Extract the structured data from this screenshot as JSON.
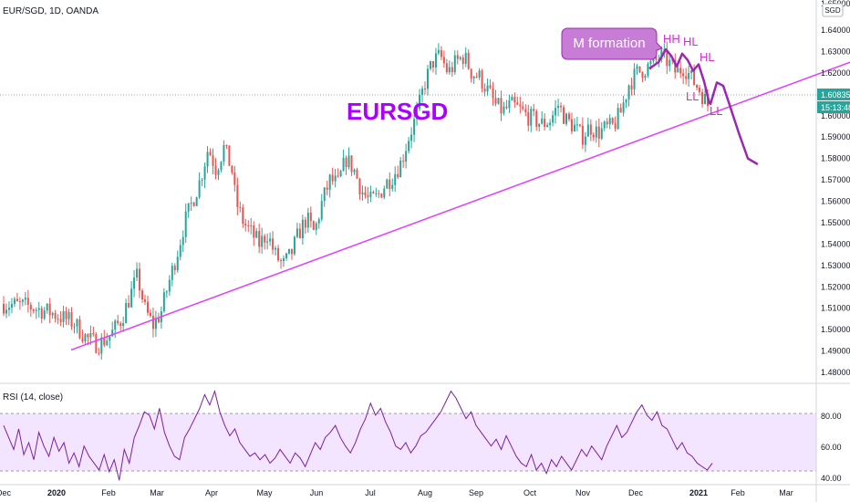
{
  "header": {
    "symbol_line": "EUR/SGD, 1D, OANDA"
  },
  "currency_box": "SGD",
  "chart_data": {
    "type": "candlestick",
    "symbol": "EURSGD",
    "interval": "1D",
    "source": "OANDA",
    "y_ticks": [
      "1.64000",
      "1.63000",
      "1.62000",
      "1.61000",
      "1.60000",
      "1.59000",
      "1.58000",
      "1.57000",
      "1.56000",
      "1.55000",
      "1.54000",
      "1.53000",
      "1.52000",
      "1.51000",
      "1.50000",
      "1.49000",
      "1.48000"
    ],
    "y_top_partial": "1.65000",
    "ylim": [
      1.477,
      1.655
    ],
    "x_labels": [
      "Dec",
      "2020",
      "Feb",
      "Mar",
      "Apr",
      "May",
      "Jun",
      "Jul",
      "Aug",
      "Sep",
      "Oct",
      "Nov",
      "Dec",
      "2021",
      "Feb",
      "Mar"
    ],
    "close_price": "1.60835",
    "countdown": "15:13:48",
    "annotations": {
      "title": "EURSGD",
      "m_formation": "M formation",
      "hh": "HH",
      "hl1": "HL",
      "hl2": "HL",
      "ll1": "LL",
      "ll2": "LL"
    },
    "colors": {
      "up": "#26a69a",
      "down": "#ef5350",
      "trend": "#e040fb",
      "path": "#9c27b0",
      "label": "#cc33cc"
    },
    "price_path": [
      [
        0,
        1.512
      ],
      [
        6,
        1.511
      ],
      [
        12,
        1.508
      ],
      [
        18,
        1.503
      ],
      [
        21,
        1.496
      ],
      [
        24,
        1.493
      ],
      [
        27,
        1.497
      ],
      [
        30,
        1.505
      ],
      [
        32,
        1.515
      ],
      [
        34,
        1.525
      ],
      [
        36,
        1.509
      ],
      [
        38,
        1.502
      ],
      [
        40,
        1.508
      ],
      [
        42,
        1.522
      ],
      [
        44,
        1.535
      ],
      [
        46,
        1.55
      ],
      [
        48,
        1.56
      ],
      [
        50,
        1.57
      ],
      [
        52,
        1.585
      ],
      [
        54,
        1.575
      ],
      [
        56,
        1.585
      ],
      [
        58,
        1.575
      ],
      [
        59,
        1.56
      ],
      [
        61,
        1.55
      ],
      [
        63,
        1.545
      ],
      [
        65,
        1.54
      ],
      [
        67,
        1.545
      ],
      [
        69,
        1.535
      ],
      [
        71,
        1.53
      ],
      [
        73,
        1.535
      ],
      [
        75,
        1.545
      ],
      [
        77,
        1.552
      ],
      [
        79,
        1.545
      ],
      [
        81,
        1.56
      ],
      [
        83,
        1.57
      ],
      [
        85,
        1.568
      ],
      [
        87,
        1.58
      ],
      [
        89,
        1.575
      ],
      [
        91,
        1.565
      ],
      [
        93,
        1.56
      ],
      [
        95,
        1.562
      ],
      [
        97,
        1.568
      ],
      [
        99,
        1.572
      ],
      [
        101,
        1.578
      ],
      [
        103,
        1.59
      ],
      [
        105,
        1.6
      ],
      [
        107,
        1.615
      ],
      [
        109,
        1.625
      ],
      [
        111,
        1.628
      ],
      [
        113,
        1.62
      ],
      [
        115,
        1.625
      ],
      [
        117,
        1.628
      ],
      [
        119,
        1.62
      ],
      [
        121,
        1.618
      ],
      [
        123,
        1.612
      ],
      [
        125,
        1.605
      ],
      [
        127,
        1.602
      ],
      [
        129,
        1.605
      ],
      [
        131,
        1.603
      ],
      [
        133,
        1.6
      ],
      [
        135,
        1.598
      ],
      [
        137,
        1.596
      ],
      [
        139,
        1.598
      ],
      [
        141,
        1.605
      ],
      [
        143,
        1.598
      ],
      [
        145,
        1.595
      ],
      [
        147,
        1.59
      ],
      [
        149,
        1.595
      ],
      [
        151,
        1.592
      ],
      [
        153,
        1.594
      ],
      [
        155,
        1.595
      ],
      [
        157,
        1.602
      ],
      [
        159,
        1.615
      ],
      [
        161,
        1.62
      ],
      [
        163,
        1.622
      ],
      [
        165,
        1.624
      ],
      [
        167,
        1.628
      ],
      [
        169,
        1.625
      ],
      [
        171,
        1.62
      ],
      [
        173,
        1.623
      ],
      [
        175,
        1.617
      ],
      [
        177,
        1.612
      ],
      [
        179,
        1.605
      ]
    ],
    "trendline": {
      "from": [
        78,
        1.4905
      ],
      "to": [
        932,
        1.625
      ],
      "units": "x_px,price"
    },
    "projection": [
      [
        779,
        1.6055
      ],
      [
        786,
        1.6155
      ],
      [
        793,
        1.614
      ],
      [
        800,
        1.605
      ],
      [
        810,
        1.592
      ],
      [
        820,
        1.58
      ],
      [
        830,
        1.5775
      ]
    ],
    "m_path": [
      [
        712,
        1.622
      ],
      [
        722,
        1.625
      ],
      [
        730,
        1.631
      ],
      [
        736,
        1.628
      ],
      [
        742,
        1.623
      ],
      [
        748,
        1.629
      ],
      [
        754,
        1.626
      ],
      [
        760,
        1.621
      ],
      [
        766,
        1.624
      ],
      [
        772,
        1.616
      ],
      [
        778,
        1.6055
      ]
    ],
    "rsi": {
      "label": "RSI (14, close)",
      "ticks": [
        "80.00",
        "60.00",
        "40.00"
      ],
      "ylim": [
        28,
        85
      ],
      "upper": 70,
      "lower": 30,
      "values": [
        62,
        55,
        48,
        60,
        45,
        52,
        42,
        58,
        50,
        44,
        55,
        47,
        52,
        40,
        46,
        38,
        50,
        44,
        40,
        36,
        45,
        35,
        42,
        30,
        48,
        40,
        55,
        62,
        70,
        68,
        60,
        72,
        58,
        50,
        44,
        42,
        55,
        60,
        66,
        72,
        80,
        74,
        82,
        70,
        62,
        56,
        60,
        52,
        48,
        44,
        46,
        42,
        45,
        40,
        43,
        48,
        44,
        40,
        46,
        43,
        38,
        45,
        52,
        48,
        55,
        58,
        62,
        55,
        50,
        46,
        52,
        60,
        66,
        75,
        68,
        72,
        64,
        58,
        50,
        48,
        52,
        46,
        50,
        56,
        58,
        62,
        66,
        70,
        76,
        82,
        78,
        72,
        66,
        70,
        62,
        58,
        54,
        50,
        54,
        48,
        56,
        50,
        44,
        40,
        38,
        45,
        36,
        40,
        34,
        42,
        38,
        44,
        40,
        36,
        42,
        48,
        44,
        50,
        46,
        42,
        50,
        56,
        62,
        55,
        58,
        64,
        70,
        74,
        68,
        65,
        70,
        62,
        60,
        54,
        48,
        52,
        46,
        44,
        40,
        38,
        36,
        40
      ]
    }
  }
}
